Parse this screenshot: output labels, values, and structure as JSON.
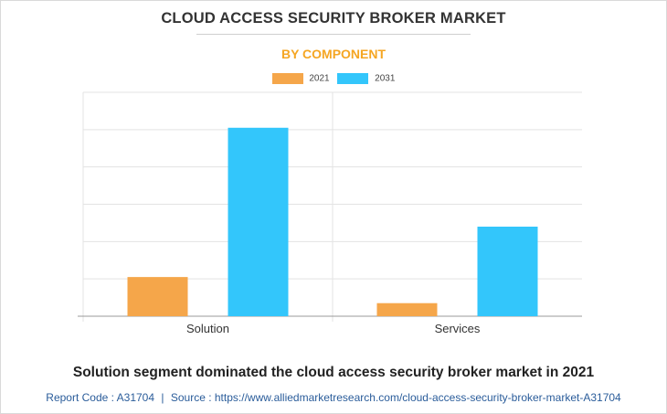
{
  "title": "CLOUD ACCESS SECURITY BROKER MARKET",
  "subtitle": "BY COMPONENT",
  "footer": {
    "headline": "Solution segment dominated the cloud access security broker market in 2021",
    "report_code": "Report Code : A31704",
    "separator": "|",
    "source": "Source : https://www.alliedmarketresearch.com/cloud-access-security-broker-market-A31704"
  },
  "colors": {
    "series_2021": "#f5a64a",
    "series_2031": "#33c6fb",
    "grid": "#e3e3e3",
    "axis": "#999999"
  },
  "chart_data": {
    "type": "bar",
    "categories": [
      "Solution",
      "Services"
    ],
    "series": [
      {
        "name": "2021",
        "values": [
          2.1,
          0.7
        ]
      },
      {
        "name": "2031",
        "values": [
          10.1,
          4.8
        ]
      }
    ],
    "ylim": [
      0,
      12
    ],
    "grid": true,
    "legend_position": "top-center"
  }
}
